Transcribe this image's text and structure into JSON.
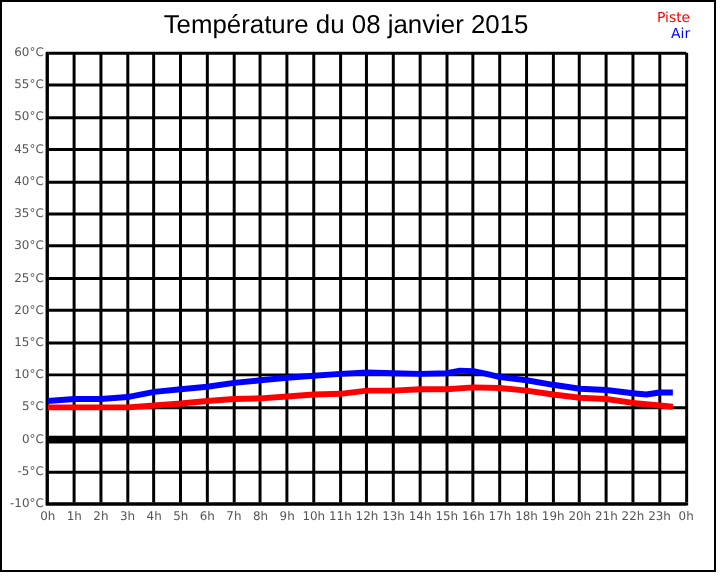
{
  "chart_data": {
    "type": "line",
    "title": "Température du 08 janvier 2015",
    "series": [
      {
        "name": "Piste",
        "color": "#ff0000",
        "x": [
          "2015-01-08T00:00",
          "2015-01-08T01:00",
          "2015-01-08T02:00",
          "2015-01-08T03:00",
          "2015-01-08T04:00",
          "2015-01-08T05:00",
          "2015-01-08T06:00",
          "2015-01-08T07:00",
          "2015-01-08T08:00",
          "2015-01-08T09:00",
          "2015-01-08T10:00",
          "2015-01-08T11:00",
          "2015-01-08T12:00",
          "2015-01-08T13:00",
          "2015-01-08T14:00",
          "2015-01-08T15:00",
          "2015-01-08T16:00",
          "2015-01-08T17:00",
          "2015-01-08T18:00",
          "2015-01-08T19:00",
          "2015-01-08T20:00",
          "2015-01-08T21:00",
          "2015-01-08T22:00",
          "2015-01-08T23:00",
          "2015-01-08T23:30"
        ],
        "values": [
          5,
          5,
          5,
          5,
          5.3,
          5.6,
          6,
          6.3,
          6.4,
          6.7,
          7,
          7.1,
          7.6,
          7.6,
          7.8,
          7.8,
          8.1,
          8,
          7.6,
          7,
          6.5,
          6.3,
          5.7,
          5.3,
          5.1
        ]
      },
      {
        "name": "Air",
        "color": "#0000ff",
        "x": [
          "2015-01-08T00:00",
          "2015-01-08T01:00",
          "2015-01-08T02:00",
          "2015-01-08T03:00",
          "2015-01-08T04:00",
          "2015-01-08T05:00",
          "2015-01-08T06:00",
          "2015-01-08T07:00",
          "2015-01-08T08:00",
          "2015-01-08T09:00",
          "2015-01-08T10:00",
          "2015-01-08T11:00",
          "2015-01-08T12:00",
          "2015-01-08T13:00",
          "2015-01-08T14:00",
          "2015-01-08T15:00",
          "2015-01-08T15:30",
          "2015-01-08T16:00",
          "2015-01-08T16:30",
          "2015-01-08T17:00",
          "2015-01-08T18:00",
          "2015-01-08T19:00",
          "2015-01-08T20:00",
          "2015-01-08T21:00",
          "2015-01-08T22:00",
          "2015-01-08T22:30",
          "2015-01-08T23:00",
          "2015-01-08T23:30"
        ],
        "values": [
          6,
          6.3,
          6.3,
          6.6,
          7.4,
          7.8,
          8.2,
          8.8,
          9.2,
          9.6,
          9.9,
          10.2,
          10.4,
          10.3,
          10.2,
          10.3,
          10.7,
          10.6,
          10.2,
          9.7,
          9.2,
          8.5,
          7.9,
          7.7,
          7.2,
          7,
          7.3,
          7.3
        ]
      }
    ],
    "xlim": [
      "2015-01-08T00:00",
      "2015-01-09T00:00"
    ],
    "xticks": [
      {
        "value": "2015-01-08T00:00",
        "label": "0h"
      },
      {
        "value": "2015-01-08T01:00",
        "label": "1h"
      },
      {
        "value": "2015-01-08T02:00",
        "label": "2h"
      },
      {
        "value": "2015-01-08T03:00",
        "label": "3h"
      },
      {
        "value": "2015-01-08T04:00",
        "label": "4h"
      },
      {
        "value": "2015-01-08T05:00",
        "label": "5h"
      },
      {
        "value": "2015-01-08T06:00",
        "label": "6h"
      },
      {
        "value": "2015-01-08T07:00",
        "label": "7h"
      },
      {
        "value": "2015-01-08T08:00",
        "label": "8h"
      },
      {
        "value": "2015-01-08T09:00",
        "label": "9h"
      },
      {
        "value": "2015-01-08T10:00",
        "label": "10h"
      },
      {
        "value": "2015-01-08T11:00",
        "label": "11h"
      },
      {
        "value": "2015-01-08T12:00",
        "label": "12h"
      },
      {
        "value": "2015-01-08T13:00",
        "label": "13h"
      },
      {
        "value": "2015-01-08T14:00",
        "label": "14h"
      },
      {
        "value": "2015-01-08T15:00",
        "label": "15h"
      },
      {
        "value": "2015-01-08T16:00",
        "label": "16h"
      },
      {
        "value": "2015-01-08T17:00",
        "label": "17h"
      },
      {
        "value": "2015-01-08T18:00",
        "label": "18h"
      },
      {
        "value": "2015-01-08T19:00",
        "label": "19h"
      },
      {
        "value": "2015-01-08T20:00",
        "label": "20h"
      },
      {
        "value": "2015-01-08T21:00",
        "label": "21h"
      },
      {
        "value": "2015-01-08T22:00",
        "label": "22h"
      },
      {
        "value": "2015-01-08T23:00",
        "label": "23h"
      },
      {
        "value": "2015-01-09T00:00",
        "label": "0h"
      }
    ],
    "ylim": [
      -10,
      60
    ],
    "yticks": [
      {
        "value": -10,
        "label": "-10°C"
      },
      {
        "value": -5,
        "label": "-5°C"
      },
      {
        "value": 0,
        "label": "0°C"
      },
      {
        "value": 5,
        "label": "5°C"
      },
      {
        "value": 10,
        "label": "10°C"
      },
      {
        "value": 15,
        "label": "15°C"
      },
      {
        "value": 20,
        "label": "20°C"
      },
      {
        "value": 25,
        "label": "25°C"
      },
      {
        "value": 30,
        "label": "30°C"
      },
      {
        "value": 35,
        "label": "35°C"
      },
      {
        "value": 40,
        "label": "40°C"
      },
      {
        "value": 45,
        "label": "45°C"
      },
      {
        "value": 50,
        "label": "50°C"
      },
      {
        "value": 55,
        "label": "55°C"
      },
      {
        "value": 60,
        "label": "60°C"
      }
    ],
    "ref_lines": [
      {
        "axis": "y",
        "value": 0,
        "color": "#000000"
      }
    ],
    "grid": true,
    "legend": "top right",
    "marker": "none",
    "line_style": "solid"
  }
}
